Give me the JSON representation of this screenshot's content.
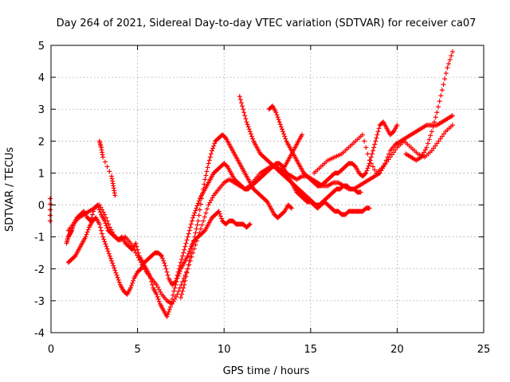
{
  "chart_data": {
    "type": "scatter",
    "title": "Day 264 of 2021, Sidereal Day-to-day VTEC variation (SDTVAR) for receiver ca07",
    "xlabel": "GPS time / hours",
    "ylabel": "SDTVAR / TECUs",
    "xlim": [
      0,
      25
    ],
    "ylim": [
      -4,
      5
    ],
    "xticks": [
      "0",
      "5",
      "10",
      "15",
      "20",
      "25"
    ],
    "yticks": [
      "-4",
      "-3",
      "-2",
      "-1",
      "0",
      "1",
      "2",
      "3",
      "4",
      "5"
    ],
    "grid": true,
    "marker": "+",
    "color": "#ff0000",
    "series": [
      {
        "x": [
          -0.05,
          -0.05
        ],
        "y": [
          0.2,
          -0.5
        ]
      },
      {
        "x": [
          0.9,
          1.0,
          1.1,
          1.2,
          1.3,
          1.5,
          1.7,
          1.9,
          2.1,
          2.3,
          2.5,
          2.7,
          2.9,
          3.1,
          3.3,
          3.5,
          3.7,
          3.9,
          4.1,
          4.3,
          4.5,
          4.7,
          4.9,
          5.1,
          5.3,
          5.5,
          5.7,
          5.9,
          6.1,
          6.3,
          6.5,
          6.7,
          6.9,
          7.1,
          7.3,
          7.5,
          7.7,
          7.9,
          8.1,
          8.3,
          8.5,
          8.7,
          8.9,
          9.1,
          9.3,
          9.5,
          9.7,
          9.9,
          10.1,
          10.3,
          10.5,
          10.7,
          10.9,
          11.1,
          11.3,
          11.5
        ],
        "y": [
          -1.2,
          -1.0,
          -0.9,
          -0.8,
          -0.6,
          -0.4,
          -0.3,
          -0.2,
          -0.4,
          -0.5,
          -0.1,
          0.0,
          -0.3,
          -0.5,
          -0.8,
          -0.9,
          -1.0,
          -1.1,
          -1.0,
          -1.2,
          -1.3,
          -1.4,
          -1.2,
          -1.6,
          -1.8,
          -2.0,
          -2.2,
          -2.6,
          -2.8,
          -3.1,
          -3.3,
          -3.5,
          -3.2,
          -2.7,
          -2.3,
          -2.0,
          -1.8,
          -1.6,
          -1.3,
          -1.1,
          -1.0,
          -0.9,
          -0.8,
          -0.6,
          -0.4,
          -0.3,
          -0.2,
          -0.5,
          -0.6,
          -0.5,
          -0.5,
          -0.6,
          -0.6,
          -0.6,
          -0.7,
          -0.6
        ]
      },
      {
        "x": [
          1.0,
          1.2,
          1.4,
          1.6,
          1.8,
          2.0,
          2.2,
          2.4,
          2.6,
          2.8,
          3.0,
          3.2,
          3.4,
          3.6,
          3.8,
          4.0,
          4.2,
          4.4,
          4.6,
          4.8,
          5.0,
          5.2,
          5.4,
          5.6,
          5.8,
          6.0,
          6.2,
          6.4,
          6.6,
          6.8,
          7.0,
          7.2,
          7.4,
          7.6,
          7.8,
          8.0,
          8.2,
          8.4,
          8.6,
          8.8,
          9.0,
          9.2,
          9.4,
          9.6,
          9.8,
          10.0,
          10.2,
          10.4,
          10.6,
          10.8,
          11.0,
          11.2,
          11.4,
          11.6,
          11.8,
          12.0,
          12.2,
          12.4,
          12.6,
          12.8,
          13.0,
          13.2,
          13.4,
          13.6,
          13.8,
          14.0,
          14.2,
          14.4,
          14.6,
          14.8,
          15.0,
          15.2,
          15.4,
          15.6,
          15.8,
          16.0,
          16.2,
          16.4,
          16.6,
          16.8,
          17.0,
          17.2,
          17.4,
          17.6,
          17.8,
          18.0,
          18.2,
          18.4
        ],
        "y": [
          -1.8,
          -1.7,
          -1.6,
          -1.4,
          -1.2,
          -1.0,
          -0.7,
          -0.5,
          -0.4,
          -0.6,
          -1.0,
          -1.3,
          -1.6,
          -1.9,
          -2.2,
          -2.5,
          -2.7,
          -2.8,
          -2.6,
          -2.3,
          -2.1,
          -2.0,
          -1.8,
          -1.7,
          -1.6,
          -1.5,
          -1.5,
          -1.6,
          -1.9,
          -2.3,
          -2.5,
          -2.4,
          -2.0,
          -1.6,
          -1.2,
          -0.8,
          -0.4,
          -0.1,
          0.2,
          0.4,
          0.6,
          0.8,
          1.0,
          1.1,
          1.2,
          1.3,
          1.2,
          1.0,
          0.8,
          0.7,
          0.6,
          0.5,
          0.5,
          0.6,
          0.7,
          0.8,
          0.9,
          1.0,
          1.1,
          1.2,
          1.3,
          1.3,
          1.2,
          1.0,
          0.8,
          0.6,
          0.4,
          0.3,
          0.2,
          0.1,
          0.1,
          0.0,
          -0.1,
          0.0,
          0.1,
          0.0,
          -0.1,
          -0.2,
          -0.2,
          -0.3,
          -0.3,
          -0.2,
          -0.2,
          -0.2,
          -0.2,
          -0.2,
          -0.1,
          -0.1
        ]
      },
      {
        "x": [
          1.0,
          1.3,
          1.6,
          1.9,
          2.2,
          2.5,
          2.8,
          3.1,
          3.4,
          3.7,
          4.0,
          4.3,
          4.6,
          4.9,
          5.2,
          5.5,
          5.8,
          6.1,
          6.4,
          6.7,
          7.0,
          7.3,
          7.6,
          7.9,
          8.2,
          8.5,
          8.8,
          9.1,
          9.4,
          9.7,
          10.0,
          10.3,
          10.6,
          10.9,
          11.2,
          11.5,
          11.8,
          12.1,
          12.4,
          12.7,
          13.0,
          13.3,
          13.6,
          13.9,
          14.2,
          14.5,
          14.8,
          15.1,
          15.4,
          15.7,
          16.0,
          16.3,
          16.6,
          16.9,
          17.2,
          17.5,
          17.8,
          18.1,
          18.4,
          18.7,
          19.0,
          19.3,
          19.6,
          19.9,
          20.2,
          20.5,
          20.8,
          21.1,
          21.4,
          21.7,
          22.0,
          22.3,
          22.6,
          22.9,
          23.2
        ],
        "y": [
          -0.8,
          -0.6,
          -0.4,
          -0.3,
          -0.2,
          -0.1,
          0.0,
          -0.3,
          -0.7,
          -1.0,
          -1.1,
          -1.0,
          -1.2,
          -1.5,
          -1.8,
          -2.1,
          -2.3,
          -2.5,
          -2.8,
          -3.0,
          -3.1,
          -2.8,
          -2.4,
          -2.0,
          -1.5,
          -1.0,
          -0.5,
          0.0,
          0.3,
          0.5,
          0.7,
          0.8,
          0.7,
          0.6,
          0.5,
          0.6,
          0.8,
          1.0,
          1.1,
          1.2,
          1.2,
          1.1,
          1.0,
          0.9,
          0.8,
          0.9,
          0.9,
          0.8,
          0.7,
          0.6,
          0.6,
          0.7,
          0.7,
          0.6,
          0.5,
          0.5,
          0.6,
          0.7,
          0.8,
          0.9,
          1.0,
          1.3,
          1.7,
          1.9,
          2.0,
          2.1,
          2.2,
          2.3,
          2.4,
          2.5,
          2.5,
          2.5,
          2.6,
          2.7,
          2.8
        ]
      },
      {
        "x": [
          7.5,
          7.7,
          7.9,
          8.1,
          8.3,
          8.5,
          8.7,
          8.9,
          9.1,
          9.3,
          9.5,
          9.7,
          9.9,
          10.1,
          10.3,
          10.5,
          10.7,
          10.9,
          11.1,
          11.3,
          11.5,
          11.7,
          11.9,
          12.1,
          12.3,
          12.5,
          12.7,
          12.9,
          13.1,
          13.3,
          13.5,
          13.7,
          13.9
        ],
        "y": [
          -2.9,
          -2.5,
          -2.0,
          -1.5,
          -1.0,
          -0.5,
          0.2,
          0.8,
          1.3,
          1.7,
          2.0,
          2.1,
          2.2,
          2.1,
          1.9,
          1.7,
          1.5,
          1.3,
          1.1,
          0.9,
          0.7,
          0.5,
          0.4,
          0.3,
          0.2,
          0.1,
          -0.1,
          -0.3,
          -0.4,
          -0.3,
          -0.2,
          0.0,
          -0.1
        ]
      },
      {
        "x": [
          10.9,
          11.1,
          11.3,
          11.5,
          11.7,
          11.9,
          12.1,
          12.3,
          12.5,
          12.7,
          12.9,
          13.1,
          13.3,
          13.5,
          13.7,
          13.9,
          14.1,
          14.3,
          14.5,
          14.7,
          14.9,
          15.1,
          15.3,
          15.5,
          15.7,
          15.9,
          16.1,
          16.3,
          16.5,
          16.7,
          16.9,
          17.1,
          17.3,
          17.5,
          17.7,
          17.9
        ],
        "y": [
          3.4,
          3.0,
          2.6,
          2.3,
          2.0,
          1.8,
          1.6,
          1.5,
          1.4,
          1.3,
          1.2,
          1.1,
          1.0,
          0.9,
          0.8,
          0.7,
          0.6,
          0.5,
          0.4,
          0.3,
          0.2,
          0.1,
          0.0,
          0.0,
          0.1,
          0.2,
          0.3,
          0.4,
          0.5,
          0.5,
          0.6,
          0.6,
          0.5,
          0.5,
          0.4,
          0.4
        ]
      },
      {
        "x": [
          12.6,
          12.8,
          13.0,
          13.2,
          13.4,
          13.6,
          13.8,
          14.0,
          14.2,
          14.4,
          14.6,
          14.8,
          15.0,
          15.2,
          15.4,
          15.6,
          15.8,
          16.0,
          16.2,
          16.4,
          16.6,
          16.8,
          17.0,
          17.2,
          17.4,
          17.6,
          17.8,
          18.0,
          18.2,
          18.4,
          18.6,
          18.8,
          19.0,
          19.2,
          19.4,
          19.6,
          19.8,
          20.0
        ],
        "y": [
          3.0,
          3.1,
          2.9,
          2.6,
          2.3,
          2.0,
          1.8,
          1.6,
          1.4,
          1.2,
          1.0,
          0.9,
          0.8,
          0.7,
          0.6,
          0.6,
          0.7,
          0.8,
          0.9,
          1.0,
          1.0,
          1.1,
          1.2,
          1.3,
          1.3,
          1.2,
          1.0,
          0.9,
          1.0,
          1.3,
          1.7,
          2.1,
          2.5,
          2.6,
          2.4,
          2.2,
          2.3,
          2.5
        ]
      },
      {
        "x": [
          13.5,
          13.7,
          13.9,
          14.1,
          14.3,
          14.5
        ],
        "y": [
          1.2,
          1.4,
          1.6,
          1.8,
          2.0,
          2.2
        ]
      },
      {
        "x": [
          15.2,
          15.6,
          16.0,
          16.4,
          16.8,
          17.2,
          17.6,
          18.0,
          18.4,
          18.8,
          19.2,
          19.6,
          20.0,
          20.4,
          20.8,
          21.2,
          21.6,
          22.0,
          22.4,
          22.8,
          23.2
        ],
        "y": [
          1.0,
          1.2,
          1.4,
          1.5,
          1.6,
          1.8,
          2.0,
          2.2,
          1.4,
          1.0,
          1.2,
          1.5,
          1.8,
          2.0,
          1.8,
          1.6,
          1.5,
          1.7,
          2.0,
          2.3,
          2.5
        ]
      },
      {
        "x": [
          20.5,
          20.8,
          21.1,
          21.4,
          21.7,
          22.0,
          22.3,
          22.6,
          22.9,
          23.2
        ],
        "y": [
          1.6,
          1.5,
          1.4,
          1.5,
          1.8,
          2.3,
          2.9,
          3.6,
          4.3,
          4.8
        ]
      },
      {
        "x": [
          2.8,
          2.9,
          3.0,
          3.5,
          3.6,
          3.7
        ],
        "y": [
          2.0,
          1.8,
          1.5,
          0.9,
          0.6,
          0.3
        ]
      }
    ]
  }
}
